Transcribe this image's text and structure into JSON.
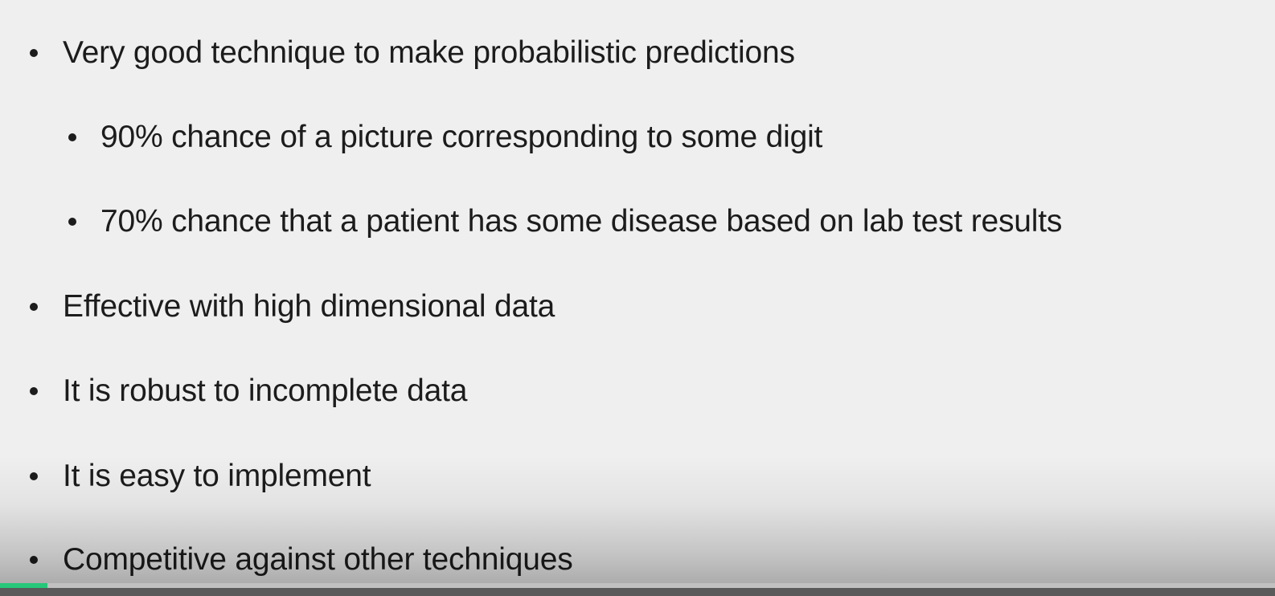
{
  "slide": {
    "bullets": [
      {
        "level": 1,
        "text": "Very good technique to make probabilistic predictions"
      },
      {
        "level": 2,
        "text": "90% chance of a picture corresponding to some digit"
      },
      {
        "level": 2,
        "text": "70% chance that a patient has some disease based on lab test results"
      },
      {
        "level": 1,
        "text": "Effective with high dimensional data"
      },
      {
        "level": 1,
        "text": "It is robust to incomplete data"
      },
      {
        "level": 1,
        "text": "It is easy to implement"
      },
      {
        "level": 1,
        "text": "Competitive against other techniques"
      }
    ]
  },
  "player": {
    "progress_fraction": 0.037,
    "progress_color": "#27c77a"
  }
}
